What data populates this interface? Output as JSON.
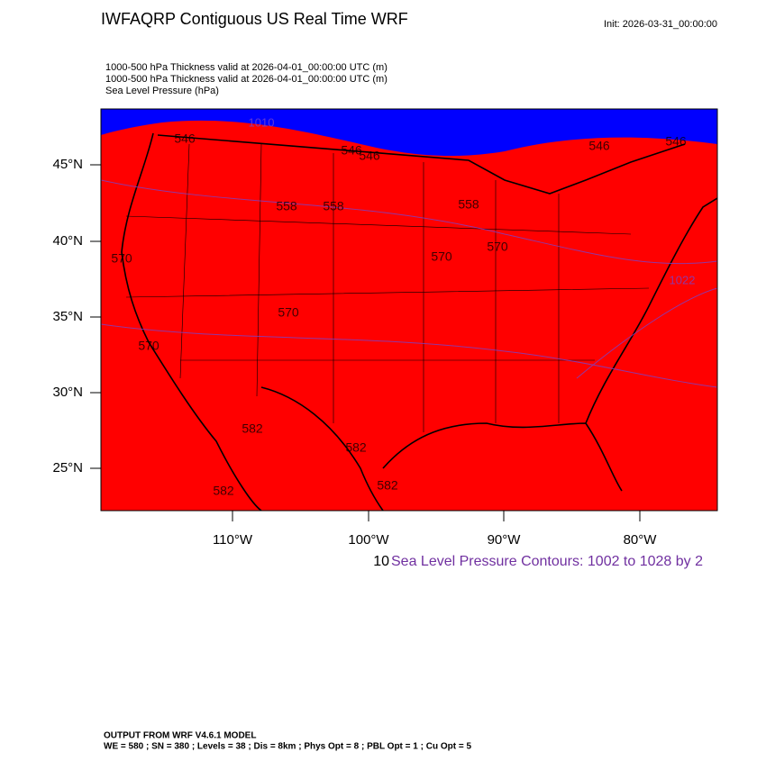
{
  "header": {
    "title": "IWFAQRP Contiguous US Real Time WRF",
    "init": "Init: 2026-03-31_00:00:00"
  },
  "subtitles": [
    "1000-500 hPa Thickness valid at 2026-04-01_00:00:00 UTC   (m)",
    "1000-500 hPa Thickness valid at 2026-04-01_00:00:00 UTC   (m)",
    "Sea Level Pressure   (hPa)"
  ],
  "map": {
    "lat_labels": [
      "45°N",
      "40°N",
      "35°N",
      "30°N",
      "25°N"
    ],
    "lon_labels": [
      "110°W",
      "100°W",
      "90°W",
      "80°W"
    ],
    "thickness_labels": [
      "546",
      "546",
      "546",
      "546",
      "546",
      "558",
      "558",
      "558",
      "570",
      "570",
      "570",
      "570",
      "570",
      "582",
      "582",
      "582",
      "582"
    ],
    "pressure_labels": [
      "1010",
      "1022"
    ]
  },
  "contour_note": {
    "cut": "10",
    "text": "Sea Level Pressure Contours: 1002 to 1028 by 2"
  },
  "footer": [
    "OUTPUT FROM WRF V4.6.1 MODEL",
    "WE = 580 ; SN = 380 ; Levels = 38 ; Dis = 8km ; Phys Opt = 8 ; PBL Opt = 1 ; Cu Opt = 5"
  ]
}
